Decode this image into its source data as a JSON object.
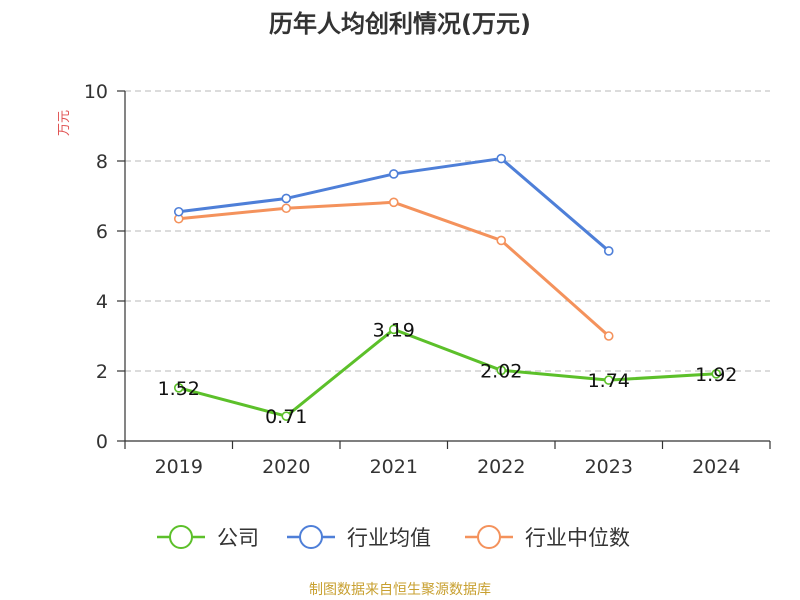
{
  "chart_data": {
    "type": "line",
    "title": "历年人均创利情况(万元)",
    "ylabel": "万元",
    "xlabel": "",
    "ylim": [
      0,
      10
    ],
    "yticks": [
      "0",
      "2",
      "4",
      "6",
      "8",
      "10"
    ],
    "categories": [
      "2019",
      "2020",
      "2021",
      "2022",
      "2023",
      "2024"
    ],
    "grid": true,
    "legend_position": "bottom",
    "series": [
      {
        "name": "公司",
        "color": "#5cc02a",
        "values": [
          1.52,
          0.71,
          3.19,
          2.02,
          1.74,
          1.92
        ],
        "labels": [
          "1.52",
          "0.71",
          "3.19",
          "2.02",
          "1.74",
          "1.92"
        ],
        "show_labels": true
      },
      {
        "name": "行业均值",
        "color": "#4e7fd8",
        "values": [
          6.55,
          6.93,
          7.63,
          8.07,
          5.43,
          null
        ],
        "show_labels": false
      },
      {
        "name": "行业中位数",
        "color": "#f4925c",
        "values": [
          6.35,
          6.65,
          6.82,
          5.73,
          3.0,
          null
        ],
        "show_labels": false
      }
    ]
  },
  "source": "制图数据来自恒生聚源数据库"
}
